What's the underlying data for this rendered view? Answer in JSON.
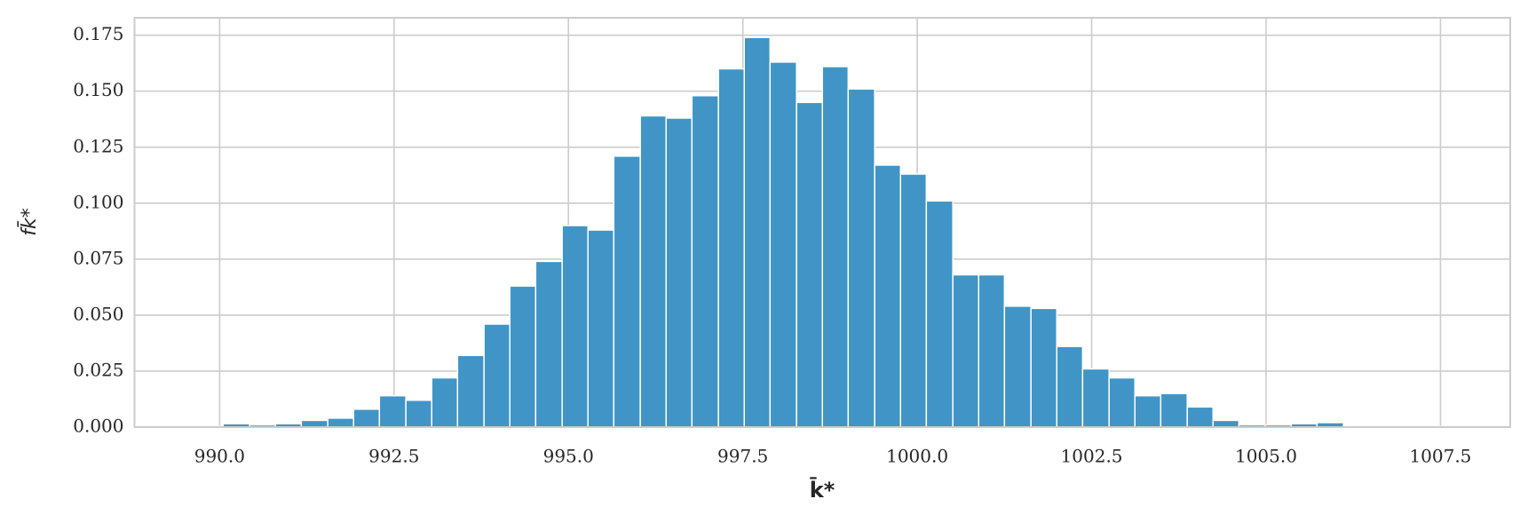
{
  "chart_data": {
    "type": "histogram",
    "x_label": "k̄*",
    "y_label": "fk̄*",
    "bins": [
      989.68,
      990.05,
      990.43,
      990.8,
      991.17,
      991.55,
      991.92,
      992.29,
      992.67,
      993.04,
      993.41,
      993.79,
      994.16,
      994.53,
      994.91,
      995.28,
      995.65,
      996.03,
      996.4,
      996.77,
      997.15,
      997.52,
      997.89,
      998.27,
      998.64,
      999.01,
      999.39,
      999.76,
      1000.13,
      1000.51,
      1000.88,
      1001.25,
      1001.63,
      1002.0,
      1002.37,
      1002.75,
      1003.12,
      1003.49,
      1003.87,
      1004.24,
      1004.61,
      1004.99,
      1005.36,
      1005.73,
      1006.11,
      1006.48,
      1006.85,
      1007.23,
      1007.6
    ],
    "values": [
      0.0003,
      0.0015,
      0.001,
      0.0015,
      0.003,
      0.004,
      0.008,
      0.014,
      0.012,
      0.022,
      0.032,
      0.046,
      0.063,
      0.074,
      0.09,
      0.088,
      0.121,
      0.139,
      0.138,
      0.148,
      0.16,
      0.174,
      0.163,
      0.145,
      0.161,
      0.151,
      0.117,
      0.113,
      0.101,
      0.068,
      0.068,
      0.054,
      0.053,
      0.036,
      0.026,
      0.022,
      0.014,
      0.015,
      0.009,
      0.003,
      0.001,
      0.001,
      0.0015,
      0.002,
      0,
      0,
      0,
      0.0003
    ],
    "color": "#4095c6",
    "xlim": [
      988.78,
      1008.5
    ],
    "ylim": [
      0,
      0.1828
    ],
    "xticks": [
      {
        "value": 990,
        "label": "990.0"
      },
      {
        "value": 992.5,
        "label": "992.5"
      },
      {
        "value": 995,
        "label": "995.0"
      },
      {
        "value": 997.5,
        "label": "997.5"
      },
      {
        "value": 1000,
        "label": "1000.0"
      },
      {
        "value": 1002.5,
        "label": "1002.5"
      },
      {
        "value": 1005,
        "label": "1005.0"
      },
      {
        "value": 1007.5,
        "label": "1007.5"
      }
    ],
    "yticks": [
      {
        "value": 0,
        "label": "0.000"
      },
      {
        "value": 0.025,
        "label": "0.025"
      },
      {
        "value": 0.05,
        "label": "0.050"
      },
      {
        "value": 0.075,
        "label": "0.075"
      },
      {
        "value": 0.1,
        "label": "0.100"
      },
      {
        "value": 0.125,
        "label": "0.125"
      },
      {
        "value": 0.15,
        "label": "0.150"
      },
      {
        "value": 0.175,
        "label": "0.175"
      }
    ],
    "grid": true
  }
}
